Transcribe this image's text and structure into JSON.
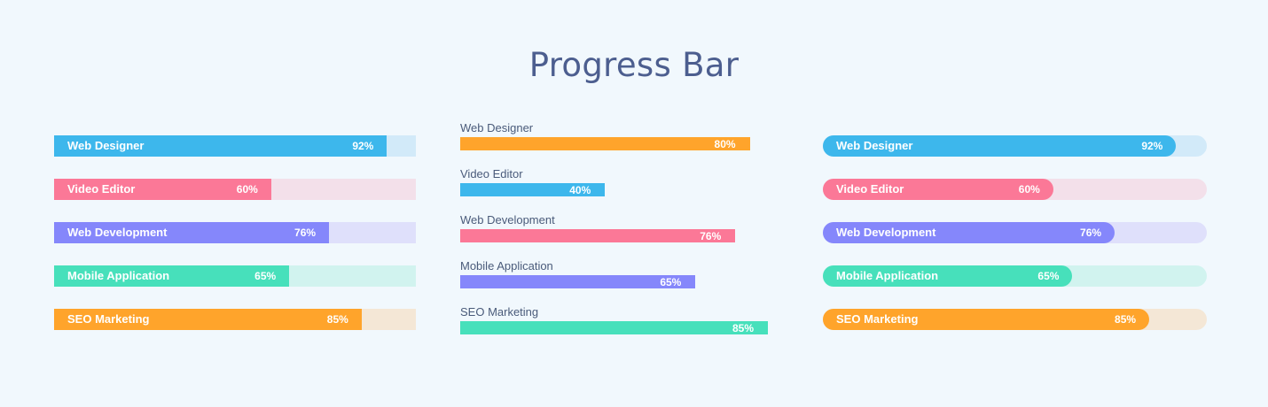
{
  "title": "Progress Bar",
  "colors": {
    "background": "#f1f8fd",
    "blue": "#3db7ec",
    "pink": "#fb7897",
    "purple": "#8587fb",
    "green": "#47e0bb",
    "orange": "#ffa42b"
  },
  "col1": [
    {
      "label": "Web Designer",
      "pct_label": "92%",
      "value": 92,
      "color": "#3db7ec",
      "track": "#d2eaf9"
    },
    {
      "label": "Video Editor",
      "pct_label": "60%",
      "value": 60,
      "color": "#fb7897",
      "track": "#f3e0ea"
    },
    {
      "label": "Web Development",
      "pct_label": "76%",
      "value": 76,
      "color": "#8587fb",
      "track": "#dfe0fb"
    },
    {
      "label": "Mobile Application",
      "pct_label": "65%",
      "value": 65,
      "color": "#47e0bb",
      "track": "#d1f3ef"
    },
    {
      "label": "SEO Marketing",
      "pct_label": "85%",
      "value": 85,
      "color": "#ffa42b",
      "track": "#f4e7d6"
    }
  ],
  "col2": [
    {
      "label": "Web Designer",
      "pct_label": "80%",
      "value": 80,
      "color": "#ffa42b"
    },
    {
      "label": "Video Editor",
      "pct_label": "40%",
      "value": 40,
      "color": "#3db7ec"
    },
    {
      "label": "Web Development",
      "pct_label": "76%",
      "value": 76,
      "color": "#fb7897"
    },
    {
      "label": "Mobile Application",
      "pct_label": "65%",
      "value": 65,
      "color": "#8587fb"
    },
    {
      "label": "SEO Marketing",
      "pct_label": "85%",
      "value": 85,
      "color": "#47e0bb"
    }
  ],
  "col3": [
    {
      "label": "Web Designer",
      "pct_label": "92%",
      "value": 92,
      "color": "#3db7ec",
      "track": "#d2eaf9"
    },
    {
      "label": "Video Editor",
      "pct_label": "60%",
      "value": 60,
      "color": "#fb7897",
      "track": "#f3e0ea"
    },
    {
      "label": "Web Development",
      "pct_label": "76%",
      "value": 76,
      "color": "#8587fb",
      "track": "#dfe0fb"
    },
    {
      "label": "Mobile Application",
      "pct_label": "65%",
      "value": 65,
      "color": "#47e0bb",
      "track": "#d1f3ef"
    },
    {
      "label": "SEO Marketing",
      "pct_label": "85%",
      "value": 85,
      "color": "#ffa42b",
      "track": "#f4e7d6"
    }
  ]
}
